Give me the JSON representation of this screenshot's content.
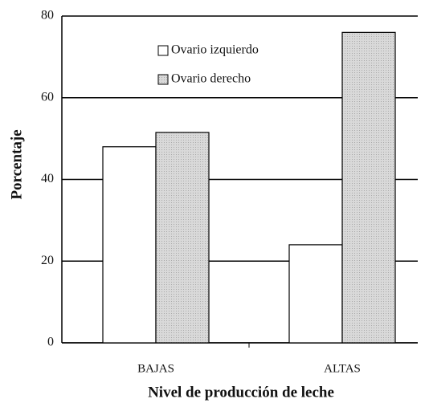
{
  "chart_data": {
    "type": "bar",
    "x_label": "Nivel de producción de leche",
    "y_label": "Porcentaje",
    "categories": [
      "BAJAS",
      "ALTAS"
    ],
    "series": [
      {
        "name": "Ovario izquierdo",
        "color": "#ffffff",
        "values": [
          48,
          24
        ]
      },
      {
        "name": "Ovario derecho",
        "color": "#d9d9d9",
        "values": [
          51.5,
          76
        ]
      }
    ],
    "ylim": [
      0,
      80
    ],
    "yticks": [
      0,
      20,
      40,
      60,
      80
    ],
    "grid": true
  }
}
